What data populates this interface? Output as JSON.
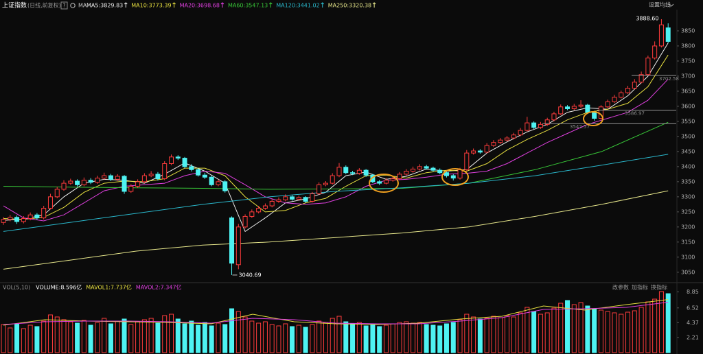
{
  "header": {
    "title": "上证指数",
    "subtitle": "(日线,前复权)",
    "help": "?",
    "ma_label": "MA",
    "settings": "设置均线"
  },
  "chart_data": [
    {
      "type": "candlestick",
      "open": [
        3215,
        3225,
        3232,
        3218,
        3228,
        3240,
        3230,
        3262,
        3300,
        3325,
        3345,
        3352,
        3340,
        3355,
        3348,
        3362,
        3370,
        3358,
        3368,
        3318,
        3335,
        3350,
        3370,
        3375,
        3360,
        3410,
        3432,
        3428,
        3400,
        3390,
        3372,
        3365,
        3340,
        3350,
        3230,
        3075,
        3200,
        3235,
        3250,
        3262,
        3270,
        3285,
        3290,
        3300,
        3292,
        3298,
        3285,
        3310,
        3340,
        3345,
        3370,
        3398,
        3380,
        3378,
        3388,
        3372,
        3350,
        3345,
        3355,
        3360,
        3375,
        3385,
        3392,
        3400,
        3395,
        3388,
        3380,
        3370,
        3362,
        3390,
        3445,
        3452,
        3448,
        3470,
        3480,
        3488,
        3495,
        3505,
        3520,
        3545,
        3530,
        3540,
        3555,
        3575,
        3598,
        3592,
        3600,
        3604,
        3580,
        3560,
        3598,
        3615,
        3630,
        3645,
        3660,
        3680,
        3705,
        3760,
        3800,
        3860
      ],
      "high": [
        3233,
        3240,
        3238,
        3236,
        3248,
        3246,
        3270,
        3310,
        3333,
        3355,
        3360,
        3358,
        3364,
        3362,
        3370,
        3380,
        3376,
        3375,
        3372,
        3342,
        3358,
        3378,
        3385,
        3382,
        3418,
        3440,
        3438,
        3432,
        3408,
        3395,
        3380,
        3370,
        3358,
        3355,
        3235,
        3210,
        3242,
        3258,
        3270,
        3278,
        3292,
        3298,
        3308,
        3305,
        3304,
        3302,
        3316,
        3348,
        3352,
        3378,
        3412,
        3404,
        3386,
        3395,
        3392,
        3376,
        3356,
        3362,
        3366,
        3382,
        3392,
        3400,
        3408,
        3406,
        3400,
        3394,
        3385,
        3375,
        3396,
        3455,
        3460,
        3458,
        3478,
        3488,
        3495,
        3502,
        3512,
        3528,
        3565,
        3550,
        3548,
        3562,
        3582,
        3606,
        3604,
        3608,
        3620,
        3608,
        3585,
        3604,
        3622,
        3638,
        3652,
        3668,
        3690,
        3715,
        3768,
        3815,
        3888.6,
        3875
      ],
      "low": [
        3207,
        3219,
        3210,
        3212,
        3222,
        3224,
        3225,
        3258,
        3295,
        3320,
        3340,
        3334,
        3335,
        3342,
        3343,
        3357,
        3352,
        3353,
        3310,
        3313,
        3330,
        3345,
        3365,
        3354,
        3355,
        3405,
        3422,
        3395,
        3384,
        3367,
        3359,
        3335,
        3335,
        3314,
        3040.69,
        3060,
        3195,
        3230,
        3245,
        3257,
        3265,
        3280,
        3285,
        3287,
        3288,
        3280,
        3281,
        3306,
        3335,
        3341,
        3365,
        3375,
        3372,
        3373,
        3366,
        3345,
        3339,
        3341,
        3350,
        3355,
        3370,
        3380,
        3387,
        3390,
        3383,
        3375,
        3364,
        3354,
        3357,
        3386,
        3440,
        3443,
        3444,
        3465,
        3475,
        3483,
        3490,
        3501,
        3516,
        3525,
        3525,
        3535,
        3550,
        3571,
        3587,
        3587,
        3595,
        3575,
        3552,
        3556,
        3594,
        3611,
        3626,
        3641,
        3656,
        3676,
        3700,
        3755,
        3795,
        3810
      ],
      "close": [
        3225,
        3232,
        3218,
        3228,
        3240,
        3230,
        3262,
        3300,
        3325,
        3345,
        3352,
        3340,
        3355,
        3348,
        3362,
        3370,
        3358,
        3368,
        3318,
        3335,
        3350,
        3370,
        3375,
        3360,
        3410,
        3432,
        3428,
        3400,
        3390,
        3372,
        3365,
        3340,
        3350,
        3320,
        3080,
        3200,
        3235,
        3250,
        3262,
        3270,
        3285,
        3290,
        3300,
        3292,
        3298,
        3285,
        3310,
        3340,
        3345,
        3370,
        3398,
        3380,
        3378,
        3388,
        3372,
        3350,
        3345,
        3355,
        3360,
        3375,
        3385,
        3392,
        3400,
        3395,
        3388,
        3380,
        3370,
        3362,
        3390,
        3445,
        3452,
        3448,
        3470,
        3480,
        3488,
        3495,
        3505,
        3520,
        3545,
        3530,
        3540,
        3555,
        3575,
        3598,
        3592,
        3600,
        3604,
        3580,
        3560,
        3598,
        3615,
        3630,
        3645,
        3660,
        3680,
        3705,
        3760,
        3800,
        3870,
        3815
      ],
      "up_color": "#ff3c3c",
      "down_color": "#4ef2f2",
      "ylim": [
        3020,
        3925
      ],
      "yticks": [
        3050,
        3100,
        3150,
        3200,
        3250,
        3300,
        3350,
        3400,
        3450,
        3500,
        3550,
        3600,
        3650,
        3700,
        3750,
        3800,
        3850
      ],
      "lines": [
        {
          "name": "MA5:3829.83",
          "color": "#f0f0f0",
          "values": [
            3222,
            3226,
            3240,
            3300,
            3345,
            3358,
            3355,
            3345,
            3375,
            3412,
            3385,
            3345,
            3185,
            3230,
            3280,
            3293,
            3315,
            3370,
            3382,
            3358,
            3368,
            3392,
            3385,
            3390,
            3445,
            3482,
            3515,
            3540,
            3580,
            3595,
            3590,
            3635,
            3700,
            3810
          ]
        },
        {
          "name": "MA10:3773.39",
          "color": "#e8e040",
          "values": [
            3228,
            3225,
            3232,
            3265,
            3315,
            3345,
            3352,
            3350,
            3360,
            3395,
            3395,
            3370,
            3300,
            3250,
            3255,
            3280,
            3295,
            3335,
            3370,
            3372,
            3362,
            3380,
            3388,
            3385,
            3410,
            3455,
            3490,
            3520,
            3555,
            3580,
            3590,
            3610,
            3665,
            3770
          ]
        },
        {
          "name": "MA20:3698.68",
          "color": "#e040e0",
          "values": [
            3270,
            3230,
            3220,
            3240,
            3280,
            3320,
            3335,
            3340,
            3345,
            3370,
            3385,
            3378,
            3340,
            3300,
            3280,
            3275,
            3280,
            3300,
            3335,
            3355,
            3358,
            3365,
            3375,
            3378,
            3385,
            3410,
            3445,
            3480,
            3510,
            3540,
            3560,
            3580,
            3620,
            3690
          ]
        },
        {
          "name": "MA60:3547.13",
          "color": "#38c838",
          "values": [
            3335,
            3332,
            3330,
            3328,
            3325,
            3326,
            3328,
            3345,
            3390,
            3450,
            3547
          ]
        },
        {
          "name": "MA120:3441.02",
          "color": "#2ab8cc",
          "values": [
            3185,
            3215,
            3245,
            3275,
            3300,
            3318,
            3330,
            3345,
            3370,
            3405,
            3441
          ]
        },
        {
          "name": "MA250:3320.38",
          "color": "#e8e88c",
          "values": [
            3060,
            3090,
            3120,
            3140,
            3150,
            3165,
            3180,
            3200,
            3235,
            3275,
            3320
          ]
        }
      ],
      "annotations": [
        {
          "label": "3888.60",
          "value": 3888.6
        },
        {
          "label": "3040.69",
          "value": 3040.69
        }
      ],
      "levels": [
        {
          "label": "3702.58",
          "value": 3702.58
        },
        {
          "label": "3586.97",
          "value": 3586.97
        },
        {
          "label": "3542.57",
          "value": 3542.57
        }
      ]
    },
    {
      "type": "bar",
      "title": "VOL(5,10)",
      "series": [
        {
          "name": "VOLUME:8.596亿",
          "values": [
            4.1,
            3.6,
            4.2,
            3.5,
            4.0,
            3.8,
            4.6,
            5.5,
            5.2,
            4.8,
            4.5,
            4.3,
            4.7,
            4.0,
            4.4,
            5.0,
            4.2,
            4.6,
            4.9,
            4.1,
            4.5,
            4.8,
            5.0,
            4.3,
            5.4,
            5.6,
            4.9,
            4.2,
            4.6,
            4.0,
            4.4,
            3.9,
            4.3,
            4.1,
            6.4,
            6.0,
            5.2,
            4.6,
            4.3,
            4.5,
            4.1,
            3.9,
            4.2,
            3.8,
            4.0,
            3.7,
            4.1,
            4.6,
            4.4,
            5.0,
            5.3,
            4.5,
            4.2,
            4.4,
            3.9,
            4.1,
            3.8,
            4.0,
            4.2,
            4.4,
            4.5,
            4.3,
            4.4,
            4.1,
            4.0,
            3.9,
            4.2,
            4.4,
            4.8,
            5.6,
            5.2,
            4.9,
            5.0,
            5.3,
            5.1,
            5.4,
            5.2,
            5.8,
            6.6,
            6.0,
            5.6,
            5.8,
            6.5,
            7.2,
            7.6,
            7.0,
            7.3,
            6.8,
            6.4,
            6.2,
            6.0,
            5.8,
            5.6,
            5.9,
            6.1,
            6.6,
            7.4,
            7.8,
            8.9,
            8.596
          ]
        }
      ],
      "lines": [
        {
          "name": "MAVOL1:7.737亿",
          "color": "#e8e040",
          "values": [
            4.0,
            4.8,
            4.6,
            4.5,
            4.4,
            4.2,
            5.6,
            4.5,
            4.2,
            4.1,
            4.3,
            4.9,
            5.3,
            6.8,
            6.2,
            7.0,
            7.737
          ]
        },
        {
          "name": "MAVOL2:7.347亿",
          "color": "#e040e0",
          "values": [
            4.1,
            4.5,
            4.6,
            4.6,
            4.5,
            4.3,
            5.0,
            4.8,
            4.3,
            4.2,
            4.2,
            4.6,
            5.1,
            6.3,
            6.4,
            6.6,
            7.347
          ]
        }
      ],
      "ylim": [
        0,
        9.6
      ],
      "yticks": [
        2.21,
        4.37,
        6.52,
        8.85
      ],
      "buttons": [
        "改参数",
        "加指标",
        "换指标"
      ]
    }
  ]
}
